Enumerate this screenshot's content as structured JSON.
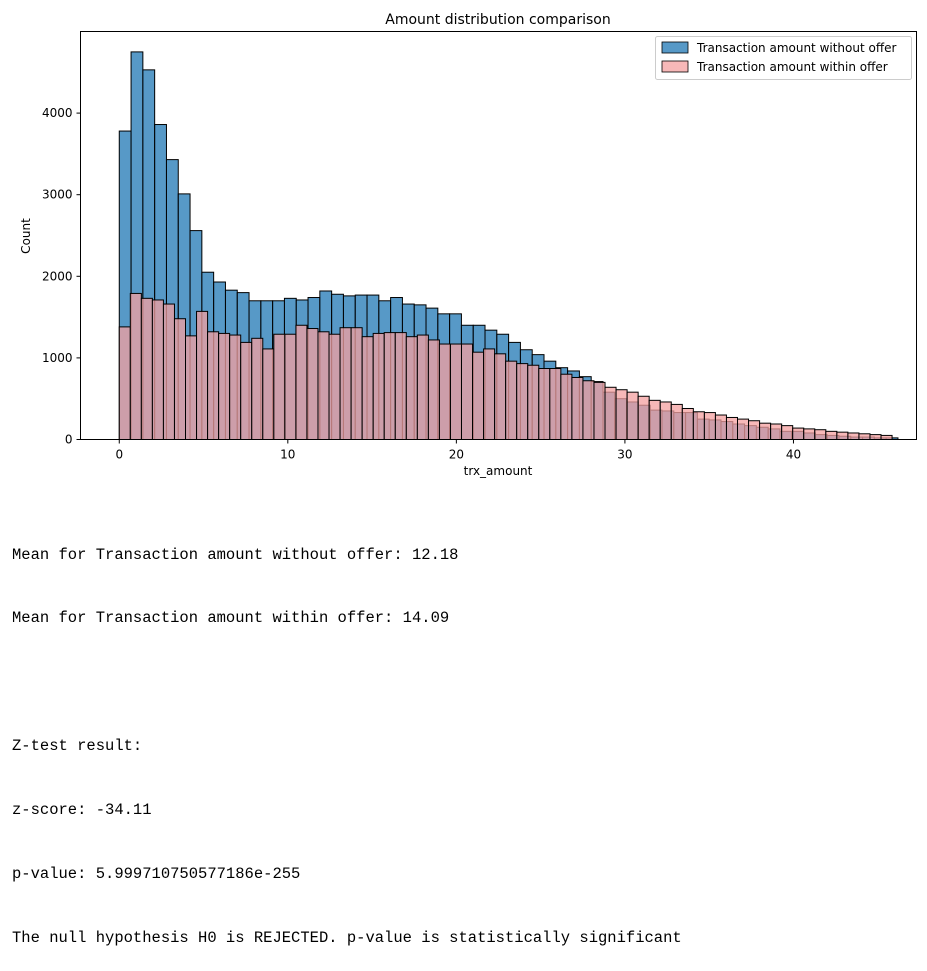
{
  "chart_data": {
    "type": "bar",
    "title": "Amount distribution comparison",
    "xlabel": "trx_amount",
    "ylabel": "Count",
    "xlim": [
      -2.3,
      47.3
    ],
    "ylim": [
      0,
      5000
    ],
    "xticks": [
      0,
      10,
      20,
      30,
      40
    ],
    "yticks": [
      0,
      1000,
      2000,
      3000,
      4000
    ],
    "grid": false,
    "legend_position": "top-right",
    "series": [
      {
        "name": "Transaction amount without offer",
        "color": "#1f77b4",
        "opacity": 0.75,
        "bin_start": 0.0,
        "bin_width": 0.7,
        "values": [
          3780,
          4750,
          4530,
          3860,
          3430,
          3010,
          2560,
          2050,
          1930,
          1830,
          1800,
          1700,
          1700,
          1700,
          1730,
          1710,
          1740,
          1820,
          1780,
          1760,
          1770,
          1770,
          1700,
          1740,
          1660,
          1650,
          1610,
          1540,
          1540,
          1400,
          1400,
          1340,
          1290,
          1190,
          1100,
          1040,
          960,
          880,
          840,
          770,
          710,
          580,
          500,
          460,
          420,
          360,
          350,
          330,
          330,
          250,
          240,
          220,
          190,
          170,
          150,
          130,
          100,
          100,
          80,
          60,
          50,
          40,
          30,
          30,
          20,
          20
        ]
      },
      {
        "name": "Transaction amount within offer",
        "color": "#f4a0a0",
        "opacity": 0.75,
        "bin_start": 0.0,
        "bin_width": 0.655,
        "values": [
          1380,
          1790,
          1730,
          1710,
          1660,
          1480,
          1270,
          1570,
          1320,
          1300,
          1280,
          1190,
          1240,
          1110,
          1290,
          1290,
          1400,
          1360,
          1320,
          1290,
          1370,
          1370,
          1260,
          1300,
          1310,
          1310,
          1260,
          1280,
          1220,
          1170,
          1170,
          1170,
          1070,
          1110,
          1050,
          960,
          930,
          910,
          870,
          870,
          800,
          760,
          720,
          700,
          640,
          610,
          580,
          530,
          480,
          460,
          430,
          380,
          340,
          330,
          300,
          270,
          250,
          230,
          200,
          190,
          170,
          140,
          130,
          120,
          100,
          90,
          80,
          70,
          60,
          50
        ]
      }
    ]
  },
  "output": {
    "lines": [
      "Mean for Transaction amount without offer: 12.18",
      "Mean for Transaction amount within offer: 14.09",
      "",
      "Z-test result:",
      "z-score: -34.11",
      "p-value: 5.999710750577186e-255",
      "The null hypothesis H0 is REJECTED. p-value is statistically significant"
    ]
  }
}
